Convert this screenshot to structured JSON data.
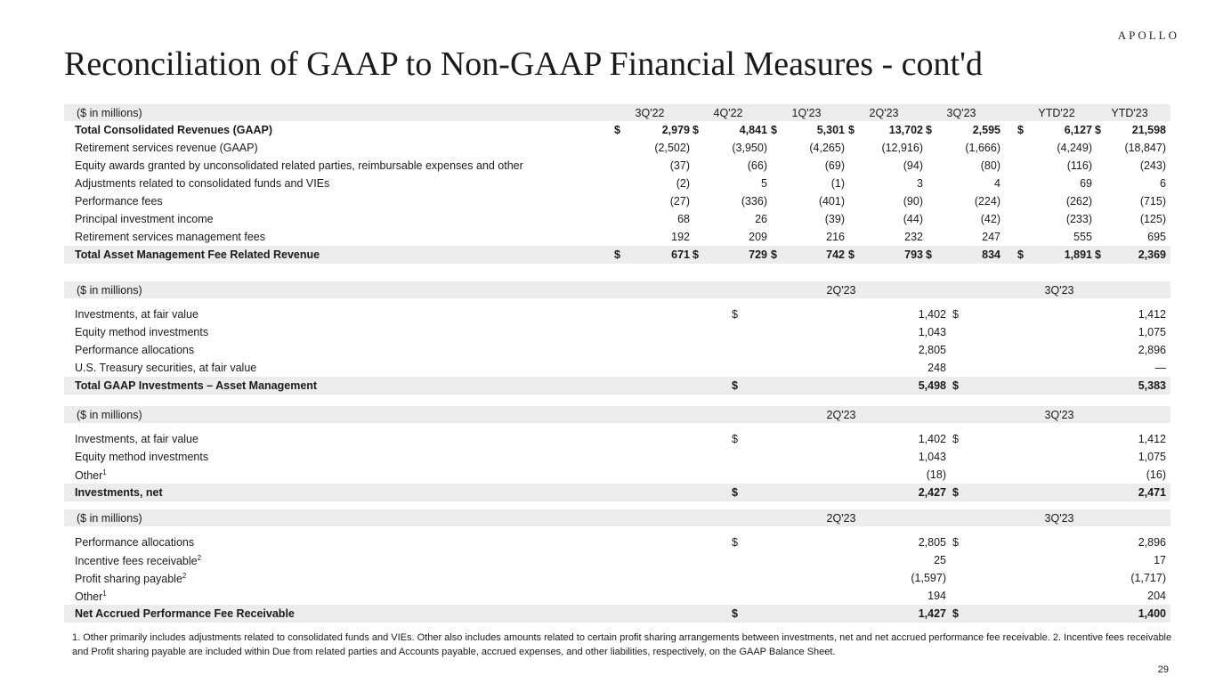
{
  "logo": "APOLLO",
  "title": "Reconciliation of GAAP to Non-GAAP Financial Measures - cont'd",
  "table1": {
    "unit": "($ in millions)",
    "columns": [
      "3Q'22",
      "4Q'22",
      "1Q'23",
      "2Q'23",
      "3Q'23",
      "YTD'22",
      "YTD'23"
    ],
    "rows": [
      {
        "label": "Total Consolidated Revenues (GAAP)",
        "bold": true,
        "dollar": true,
        "values": [
          "2,979",
          "4,841",
          "5,301",
          "13,702",
          "2,595",
          "6,127",
          "21,598"
        ]
      },
      {
        "label": "Retirement services revenue (GAAP)",
        "values": [
          "(2,502)",
          "(3,950)",
          "(4,265)",
          "(12,916)",
          "(1,666)",
          "(4,249)",
          "(18,847)"
        ]
      },
      {
        "label": "Equity awards granted by unconsolidated related parties, reimbursable expenses and other",
        "values": [
          "(37)",
          "(66)",
          "(69)",
          "(94)",
          "(80)",
          "(116)",
          "(243)"
        ]
      },
      {
        "label": "Adjustments related to consolidated funds and VIEs",
        "values": [
          "(2)",
          "5",
          "(1)",
          "3",
          "4",
          "69",
          "6"
        ]
      },
      {
        "label": "Performance fees",
        "values": [
          "(27)",
          "(336)",
          "(401)",
          "(90)",
          "(224)",
          "(262)",
          "(715)"
        ]
      },
      {
        "label": "Principal investment income",
        "values": [
          "68",
          "26",
          "(39)",
          "(44)",
          "(42)",
          "(233)",
          "(125)"
        ]
      },
      {
        "label": "Retirement services management fees",
        "values": [
          "192",
          "209",
          "216",
          "232",
          "247",
          "555",
          "695"
        ]
      },
      {
        "label": "Total Asset Management Fee Related Revenue",
        "total": true,
        "dollar": true,
        "values": [
          "671",
          "729",
          "742",
          "793",
          "834",
          "1,891",
          "2,369"
        ]
      }
    ]
  },
  "tables": [
    {
      "unit": "($ in millions)",
      "columns": [
        "2Q'23",
        "3Q'23"
      ],
      "rows": [
        {
          "label": "Investments, at fair value",
          "dollar": true,
          "values": [
            "1,402",
            "1,412"
          ]
        },
        {
          "label": "Equity method investments",
          "values": [
            "1,043",
            "1,075"
          ]
        },
        {
          "label": "Performance allocations",
          "values": [
            "2,805",
            "2,896"
          ]
        },
        {
          "label": "U.S. Treasury securities, at fair value",
          "values": [
            "248",
            "—"
          ]
        },
        {
          "label": "Total GAAP Investments – Asset Management",
          "total": true,
          "dollar": true,
          "values": [
            "5,498",
            "5,383"
          ]
        }
      ]
    },
    {
      "unit": "($ in millions)",
      "columns": [
        "2Q'23",
        "3Q'23"
      ],
      "rows": [
        {
          "label": "Investments, at fair value",
          "dollar": true,
          "values": [
            "1,402",
            "1,412"
          ]
        },
        {
          "label": "Equity method investments",
          "values": [
            "1,043",
            "1,075"
          ]
        },
        {
          "label": "Other",
          "sup": "1",
          "values": [
            "(18)",
            "(16)"
          ]
        },
        {
          "label": "Investments, net",
          "total": true,
          "dollar": true,
          "values": [
            "2,427",
            "2,471"
          ]
        }
      ]
    },
    {
      "unit": "($ in millions)",
      "columns": [
        "2Q'23",
        "3Q'23"
      ],
      "rows": [
        {
          "label": "Performance allocations",
          "dollar": true,
          "values": [
            "2,805",
            "2,896"
          ]
        },
        {
          "label": "Incentive fees receivable",
          "sup": "2",
          "values": [
            "25",
            "17"
          ]
        },
        {
          "label": "Profit sharing payable",
          "sup": "2",
          "values": [
            "(1,597)",
            "(1,717)"
          ]
        },
        {
          "label": "Other",
          "sup": "1",
          "values": [
            "194",
            "204"
          ]
        },
        {
          "label": "Net Accrued Performance Fee Receivable",
          "total": true,
          "dollar": true,
          "values": [
            "1,427",
            "1,400"
          ]
        }
      ]
    }
  ],
  "currency_symbol": "$",
  "footnote": "1. Other primarily includes adjustments related to consolidated funds and VIEs. Other also includes amounts related to certain profit sharing arrangements between investments, net and net accrued performance fee receivable. 2. Incentive fees receivable and Profit sharing payable are included within Due from related parties and Accounts payable, accrued expenses, and other liabilities, respectively, on the GAAP Balance Sheet.",
  "page_number": "29"
}
